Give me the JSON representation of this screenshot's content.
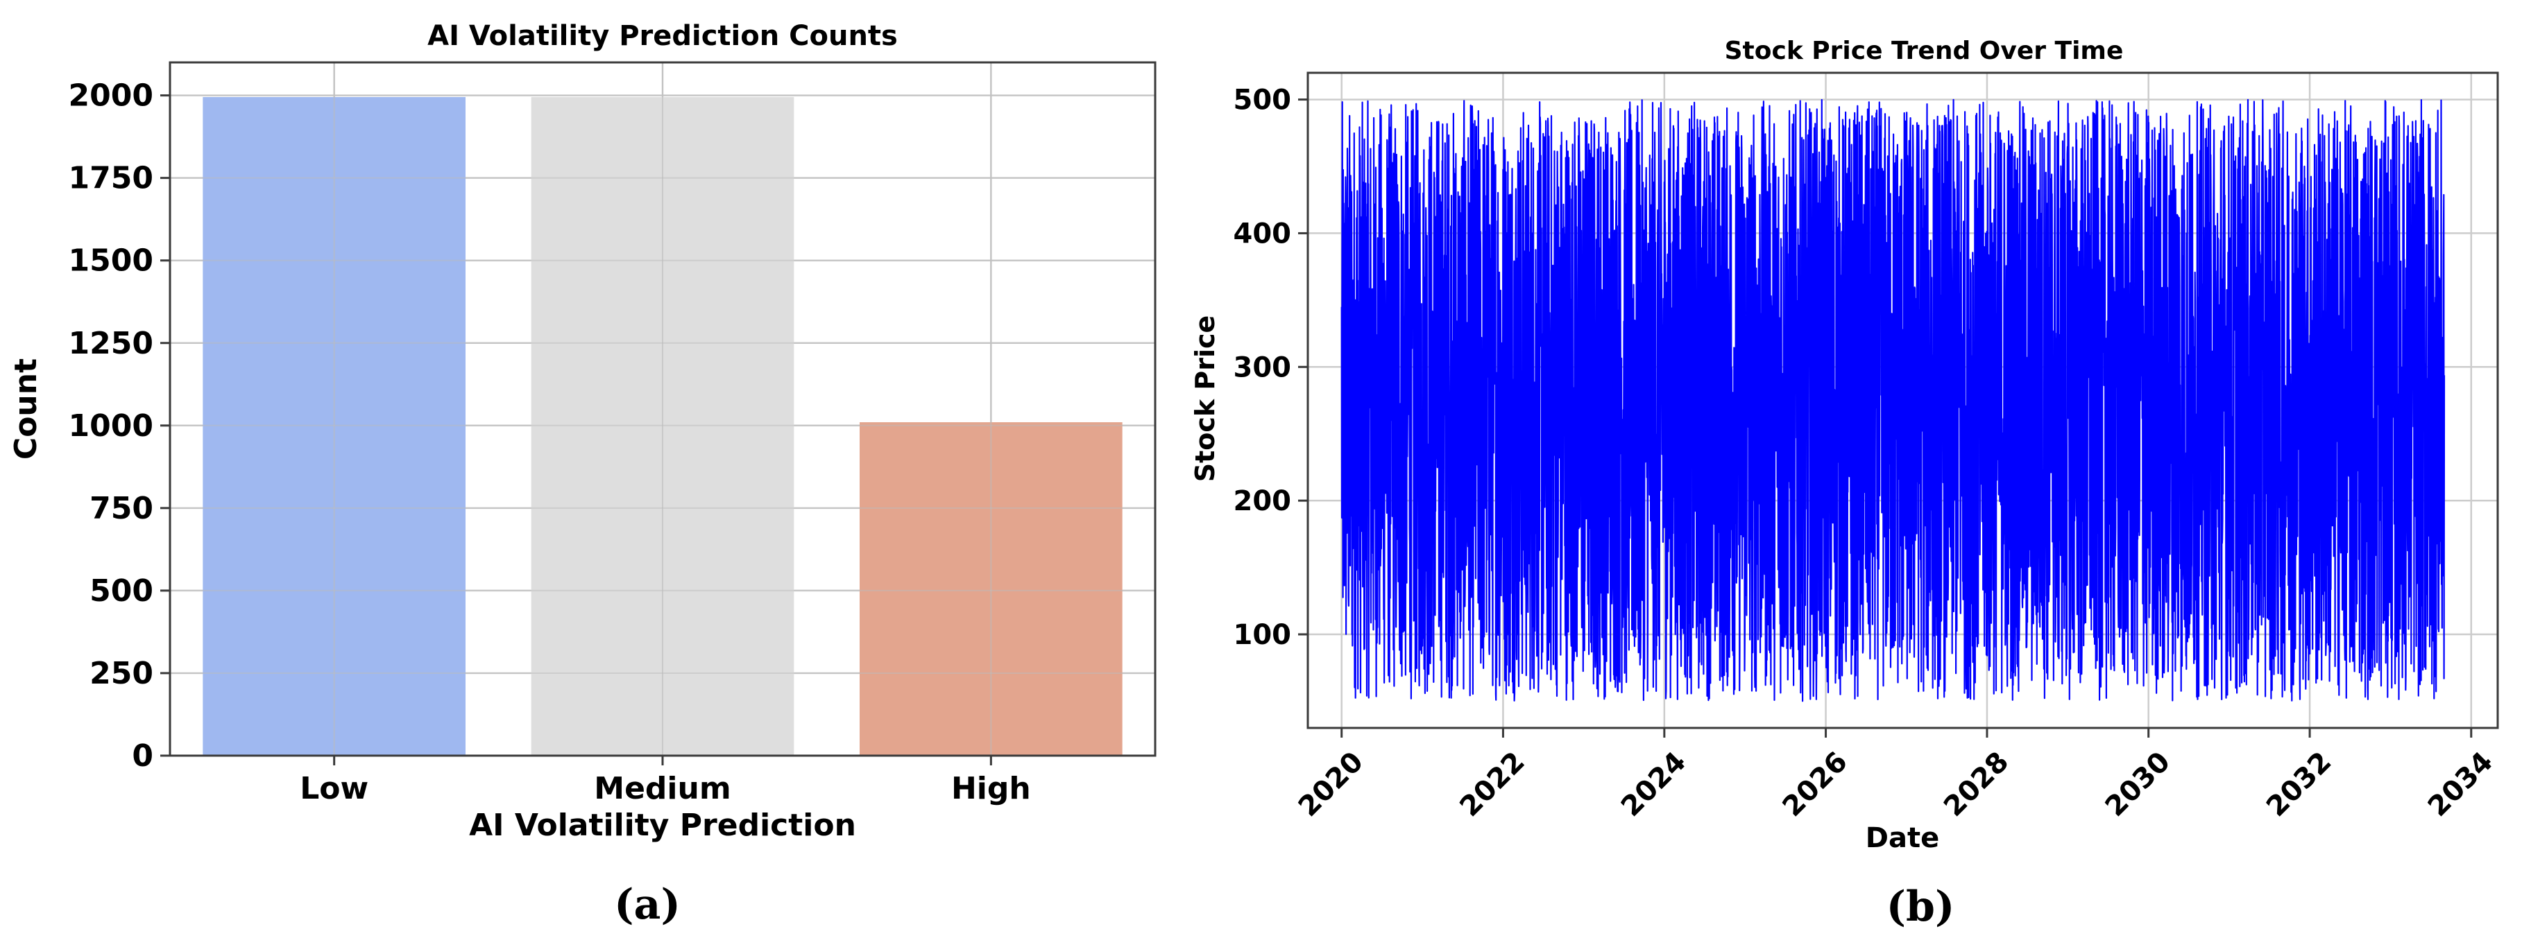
{
  "chart_data": [
    {
      "type": "bar",
      "title": "AI Volatility Prediction Counts",
      "xlabel": "AI Volatility Prediction",
      "ylabel": "Count",
      "categories": [
        "Low",
        "Medium",
        "High"
      ],
      "values": [
        1995,
        1995,
        1010
      ],
      "colors": [
        "#9ab4ef",
        "#dcdcdc",
        "#e1a088"
      ],
      "ylim": [
        0,
        2100
      ],
      "yticks": [
        0,
        250,
        500,
        750,
        1000,
        1250,
        1500,
        1750,
        2000
      ],
      "ytick_labels": [
        "0",
        "250",
        "500",
        "750",
        "1000",
        "1250",
        "1500",
        "1750",
        "2000"
      ],
      "grid": true,
      "caption": "(a)"
    },
    {
      "type": "line",
      "title": "Stock Price Trend Over Time",
      "xlabel": "Date",
      "ylabel": "Stock Price",
      "x_range": [
        "2020-01-01",
        "2033-09-01"
      ],
      "xlim": [
        "2019-08-01",
        "2034-05-01"
      ],
      "ylim": [
        30,
        520
      ],
      "xticks": [
        "2020",
        "2022",
        "2024",
        "2026",
        "2028",
        "2030",
        "2032",
        "2034"
      ],
      "yticks": [
        100,
        200,
        300,
        400,
        500
      ],
      "ytick_labels": [
        "100",
        "200",
        "300",
        "400",
        "500"
      ],
      "value_range": [
        50,
        500
      ],
      "series": [
        {
          "values_summary": "dense daily oscillation between about 50 and 500",
          "color": "#0000ff"
        }
      ],
      "grid": true,
      "caption": "(b)"
    }
  ]
}
